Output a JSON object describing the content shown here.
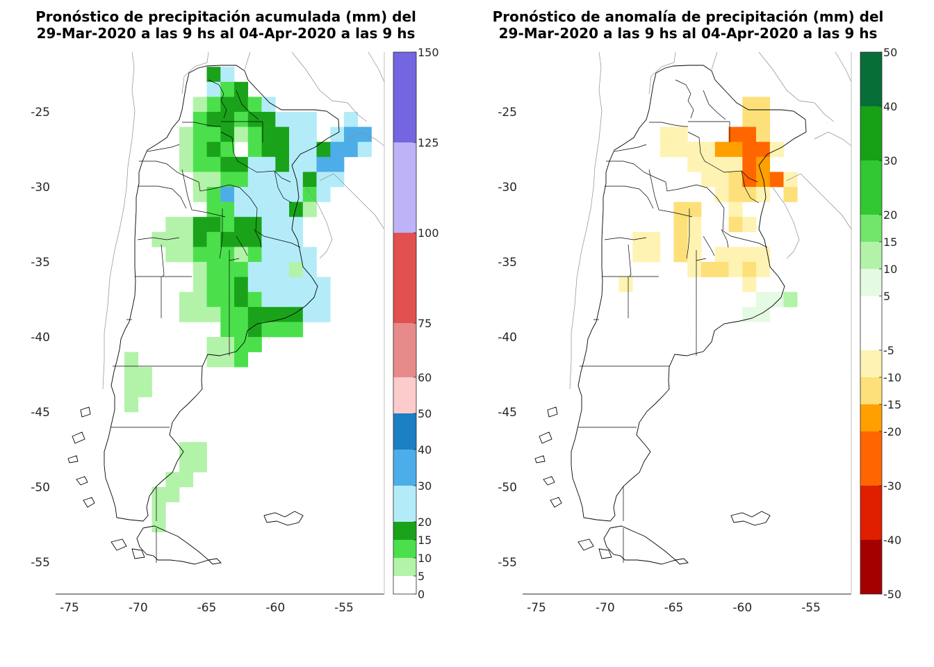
{
  "panels": [
    {
      "title_line1": "Pronóstico de precipitación acumulada (mm) del",
      "title_line2": "29-Mar-2020 a las 9 hs al 04-Apr-2020 a las 9 hs",
      "colorbar": [
        {
          "from": 0,
          "to": 5,
          "color": "#ffffff"
        },
        {
          "from": 5,
          "to": 10,
          "color": "#b2f3a9"
        },
        {
          "from": 10,
          "to": 15,
          "color": "#4be04b"
        },
        {
          "from": 15,
          "to": 20,
          "color": "#1aa31a"
        },
        {
          "from": 20,
          "to": 30,
          "color": "#b3ecf8"
        },
        {
          "from": 30,
          "to": 40,
          "color": "#4dade8"
        },
        {
          "from": 40,
          "to": 50,
          "color": "#1a7fc3"
        },
        {
          "from": 50,
          "to": 60,
          "color": "#fccccc"
        },
        {
          "from": 60,
          "to": 75,
          "color": "#e68a8a"
        },
        {
          "from": 75,
          "to": 100,
          "color": "#e14f4f"
        },
        {
          "from": 100,
          "to": 125,
          "color": "#beb3f7"
        },
        {
          "from": 125,
          "to": 150,
          "color": "#7466e0"
        }
      ],
      "colorbar_labels": [
        "0",
        "5",
        "10",
        "15",
        "20",
        "30",
        "40",
        "50",
        "60",
        "75",
        "100",
        "125",
        "150"
      ]
    },
    {
      "title_line1": "Pronóstico de anomalía de precipitación (mm) del",
      "title_line2": "29-Mar-2020 a las 9 hs al 04-Apr-2020 a las 9 hs",
      "colorbar": [
        {
          "from": -50,
          "to": -40,
          "color": "#a50000"
        },
        {
          "from": -40,
          "to": -30,
          "color": "#e01e00"
        },
        {
          "from": -30,
          "to": -20,
          "color": "#ff6600"
        },
        {
          "from": -20,
          "to": -15,
          "color": "#ff9f00"
        },
        {
          "from": -15,
          "to": -10,
          "color": "#fde07a"
        },
        {
          "from": -10,
          "to": -5,
          "color": "#fef3b2"
        },
        {
          "from": -5,
          "to": 5,
          "color": "#ffffff"
        },
        {
          "from": 5,
          "to": 10,
          "color": "#e5fae2"
        },
        {
          "from": 10,
          "to": 15,
          "color": "#b2f3a9"
        },
        {
          "from": 15,
          "to": 20,
          "color": "#72e66a"
        },
        {
          "from": 20,
          "to": 30,
          "color": "#32c832"
        },
        {
          "from": 30,
          "to": 40,
          "color": "#17a117"
        },
        {
          "from": 40,
          "to": 50,
          "color": "#086e38"
        }
      ],
      "colorbar_labels": [
        "-50",
        "-40",
        "-30",
        "-20",
        "-15",
        "-10",
        "-5",
        "5",
        "10",
        "15",
        "20",
        "30",
        "40",
        "50"
      ]
    }
  ],
  "x_ticks": [
    "-75",
    "-70",
    "-65",
    "-60",
    "-55"
  ],
  "y_ticks": [
    "-25",
    "-30",
    "-35",
    "-40",
    "-45",
    "-50",
    "-55"
  ]
}
